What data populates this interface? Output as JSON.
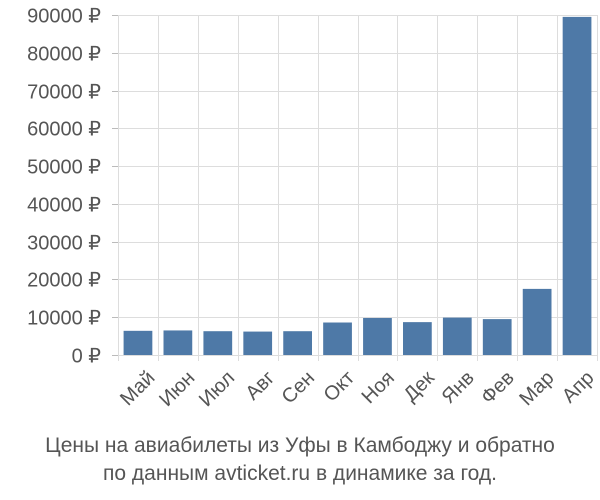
{
  "chart_data": {
    "type": "bar",
    "categories": [
      "Май",
      "Июн",
      "Июл",
      "Авг",
      "Сен",
      "Окт",
      "Ноя",
      "Дек",
      "Янв",
      "Фев",
      "Мар",
      "Апр"
    ],
    "values": [
      6400,
      6500,
      6300,
      6200,
      6300,
      8600,
      9800,
      8700,
      9900,
      9500,
      17500,
      89500
    ],
    "ylim": [
      0,
      90000
    ],
    "yticks": [
      0,
      10000,
      20000,
      30000,
      40000,
      50000,
      60000,
      70000,
      80000,
      90000
    ],
    "ytick_labels": [
      "0 ₽",
      "10000 ₽",
      "20000 ₽",
      "30000 ₽",
      "40000 ₽",
      "50000 ₽",
      "60000 ₽",
      "70000 ₽",
      "80000 ₽",
      "90000 ₽"
    ],
    "bar_color": "#4e79a7",
    "grid": true
  },
  "caption": {
    "line1": "Цены на авиабилеты из Уфы в Камбоджу и обратно",
    "line2": "по данным avticket.ru в динамике за год."
  }
}
